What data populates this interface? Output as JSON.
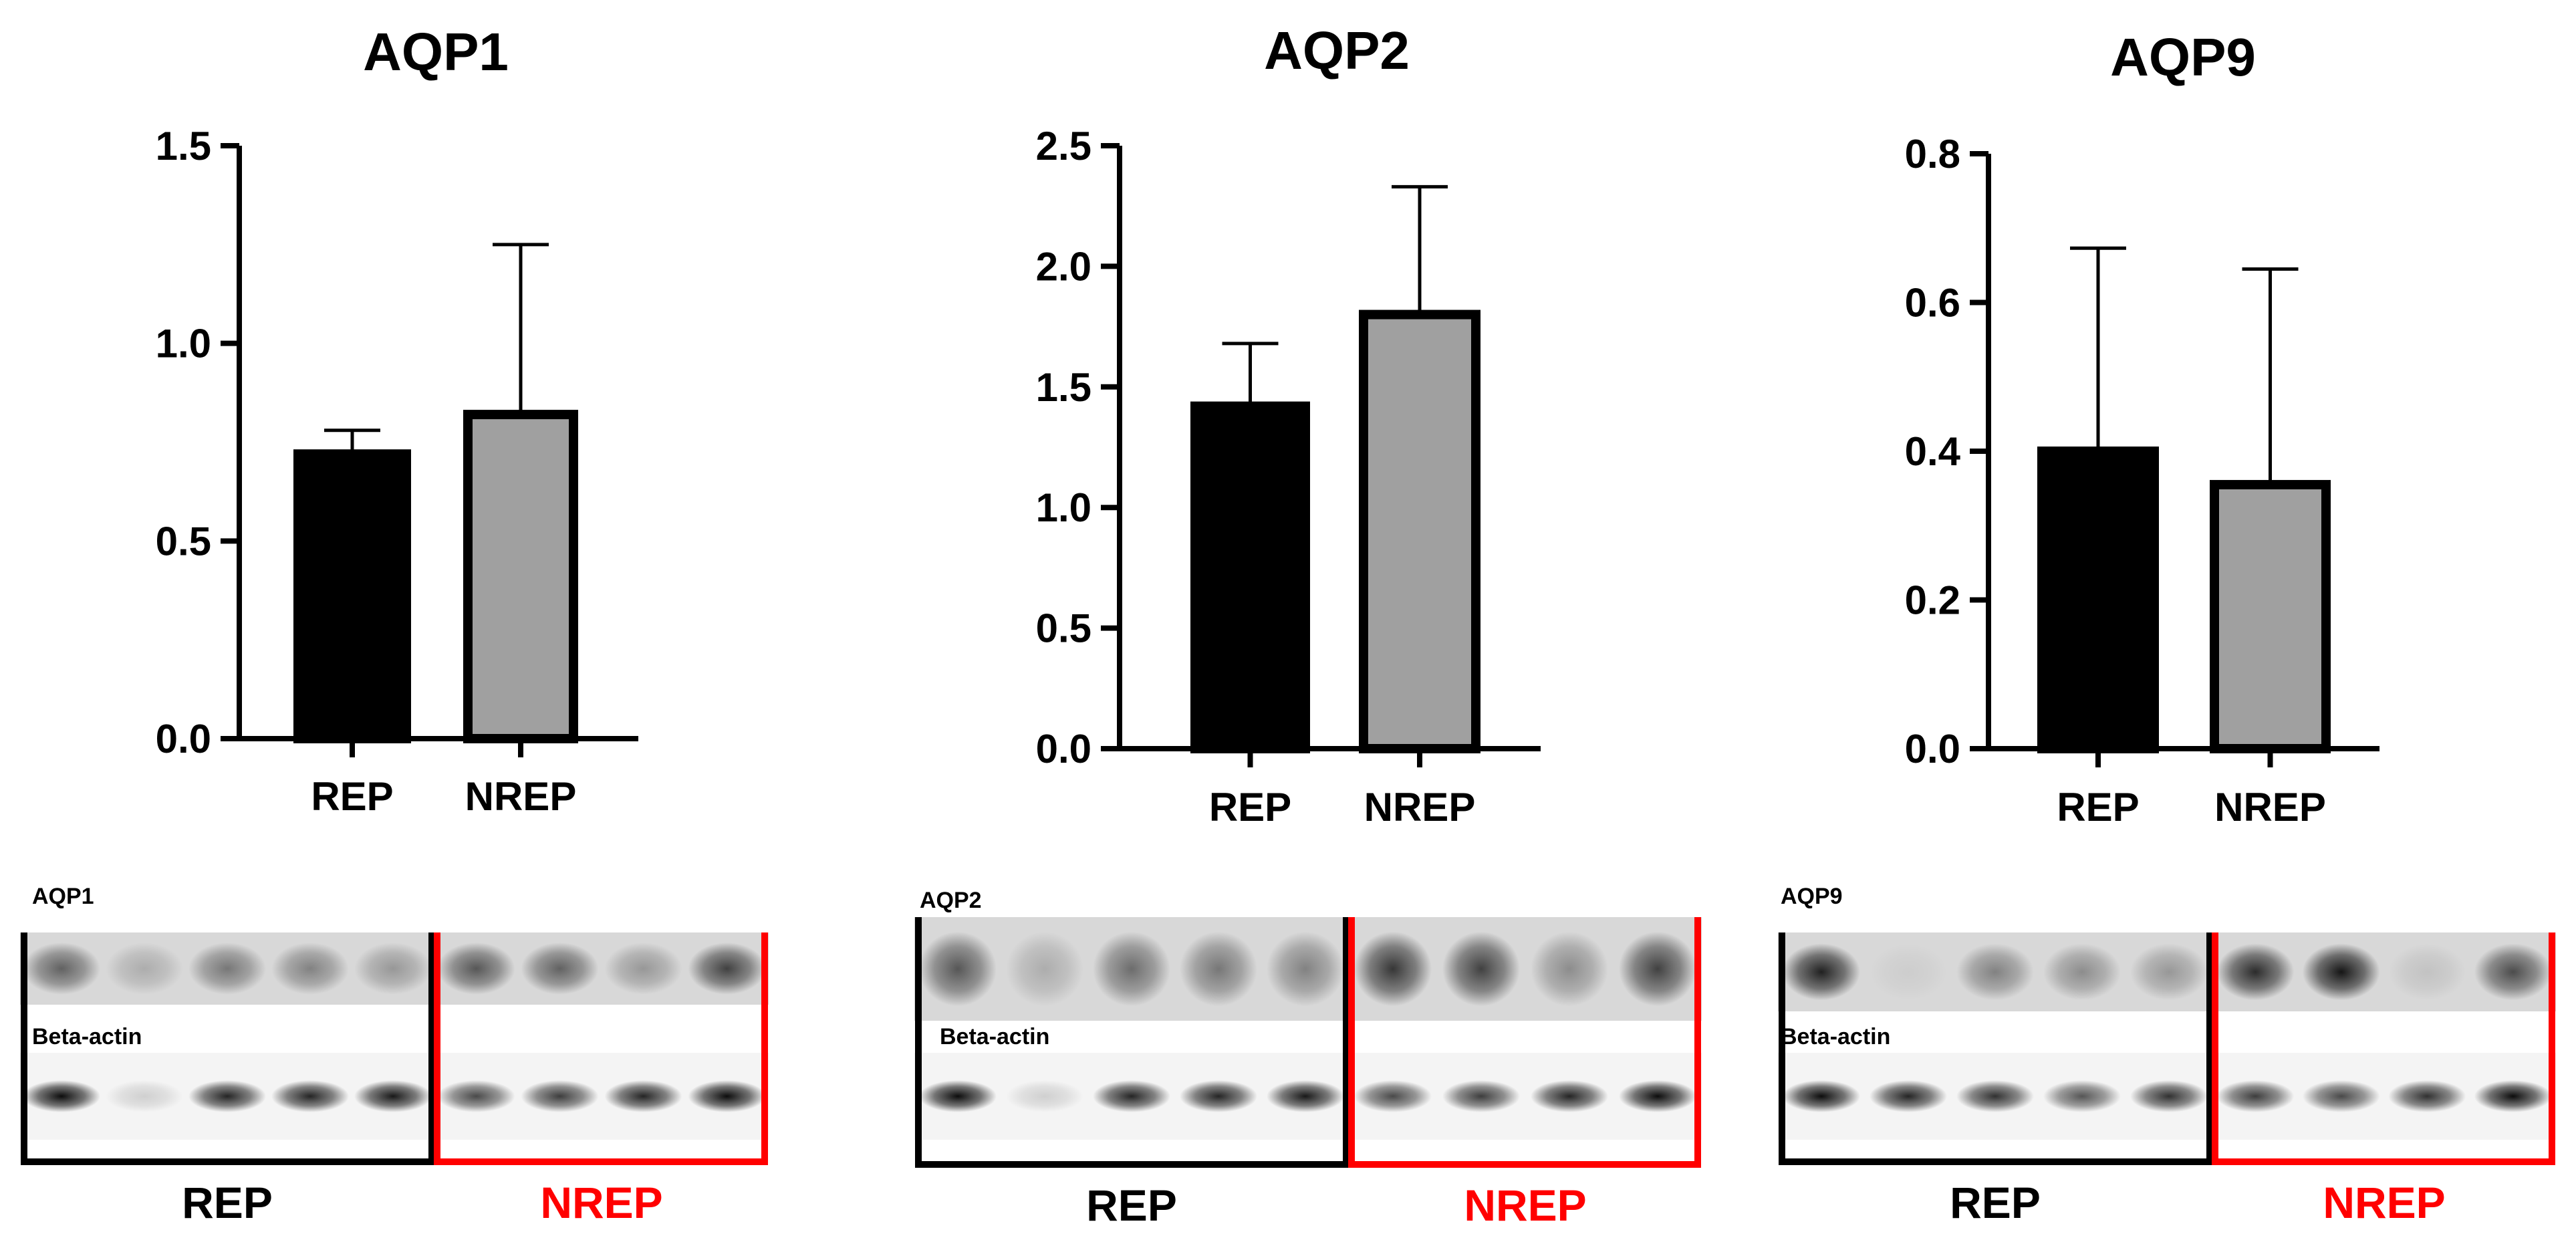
{
  "chart_data": [
    {
      "type": "bar",
      "title": "AQP1",
      "categories": [
        "REP",
        "NREP"
      ],
      "values": [
        0.72,
        0.82
      ],
      "error_bars": [
        0.06,
        0.43
      ],
      "yticks": [
        "0.0",
        "0.5",
        "1.0",
        "1.5"
      ],
      "ylim": [
        0,
        1.5
      ],
      "bar_colors": [
        "#000000",
        "#a0a0a0"
      ],
      "grid": false,
      "blot": {
        "target_label": "AQP1",
        "loading_label": "Beta-actin",
        "groups": [
          {
            "label": "REP",
            "color": "#000000",
            "lanes": 5
          },
          {
            "label": "NREP",
            "color": "#ff0000",
            "lanes": 4
          }
        ]
      }
    },
    {
      "type": "bar",
      "title": "AQP2",
      "categories": [
        "REP",
        "NREP"
      ],
      "values": [
        1.42,
        1.8
      ],
      "error_bars": [
        0.26,
        0.53
      ],
      "yticks": [
        "0.0",
        "0.5",
        "1.0",
        "1.5",
        "2.0",
        "2.5"
      ],
      "ylim": [
        0,
        2.5
      ],
      "bar_colors": [
        "#000000",
        "#a0a0a0"
      ],
      "grid": false,
      "blot": {
        "target_label": "AQP2",
        "loading_label": "Beta-actin",
        "groups": [
          {
            "label": "REP",
            "color": "#000000",
            "lanes": 5
          },
          {
            "label": "NREP",
            "color": "#ff0000",
            "lanes": 4
          }
        ]
      }
    },
    {
      "type": "bar",
      "title": "AQP9",
      "categories": [
        "REP",
        "NREP"
      ],
      "values": [
        0.4,
        0.355
      ],
      "error_bars": [
        0.273,
        0.29
      ],
      "yticks": [
        "0.0",
        "0.2",
        "0.4",
        "0.6",
        "0.8"
      ],
      "ylim": [
        0,
        0.8
      ],
      "bar_colors": [
        "#000000",
        "#a0a0a0"
      ],
      "grid": false,
      "blot": {
        "target_label": "AQP9",
        "loading_label": "Beta-actin",
        "groups": [
          {
            "label": "REP",
            "color": "#000000",
            "lanes": 5
          },
          {
            "label": "NREP",
            "color": "#ff0000",
            "lanes": 4
          }
        ]
      }
    }
  ]
}
